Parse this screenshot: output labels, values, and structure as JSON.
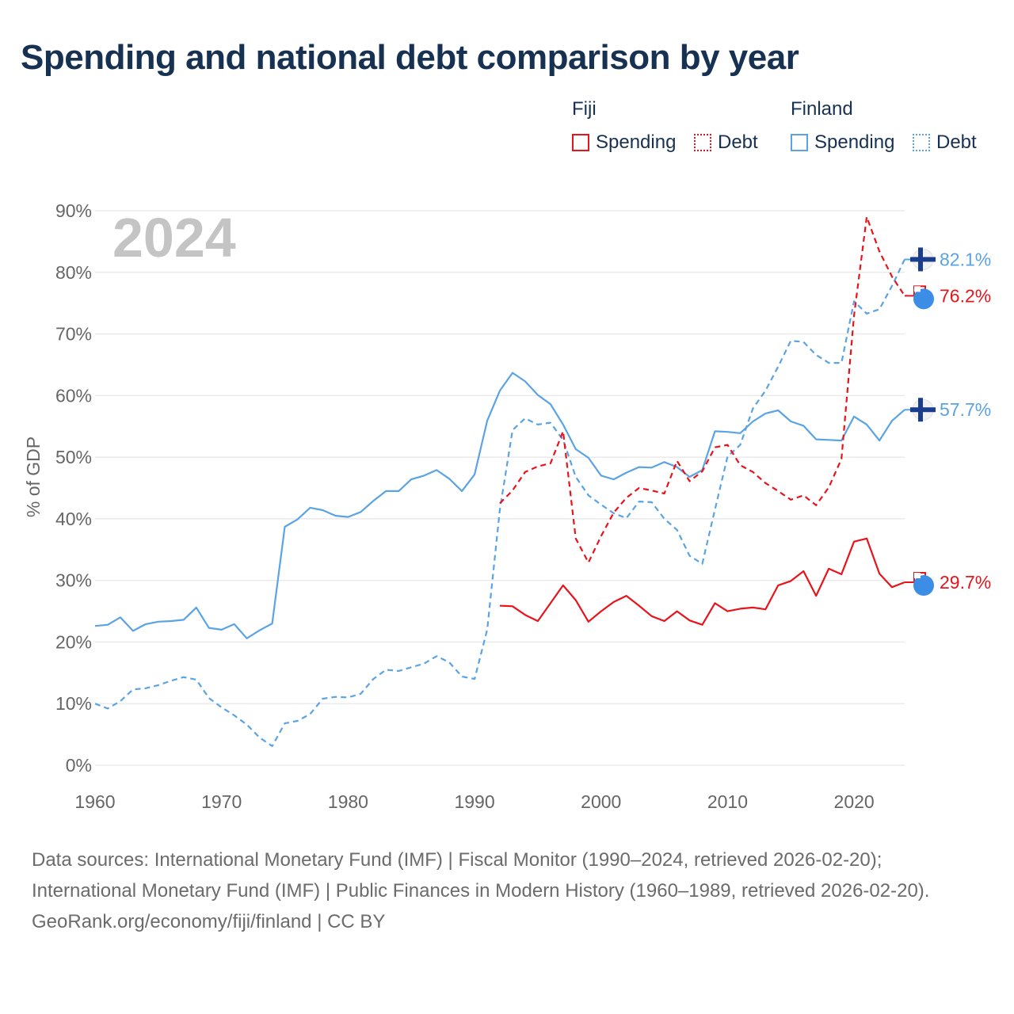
{
  "title": "Spending and national debt comparison by year",
  "legend": {
    "groups": [
      {
        "name": "Fiji",
        "items": [
          "Spending",
          "Debt"
        ]
      },
      {
        "name": "Finland",
        "items": [
          "Spending",
          "Debt"
        ]
      }
    ]
  },
  "year_watermark": "2024",
  "footer": {
    "sources": "Data sources: International Monetary Fund (IMF) | Fiscal Monitor (1990–2024, retrieved 2026-02-20); International Monetary Fund (IMF) | Public Finances in Modern History (1960–1989, retrieved 2026-02-20).",
    "credit": "GeoRank.org/economy/fiji/finland | CC BY"
  },
  "colors": {
    "fiji": "#e8141c",
    "finland": "#5aa3e4",
    "grid": "#e6e6e6",
    "axis_text": "#666666"
  },
  "chart_data": {
    "type": "line",
    "ylabel": "% of GDP",
    "xlabel": "",
    "xlim": [
      1960,
      2024
    ],
    "ylim": [
      0,
      90
    ],
    "x_ticks": [
      1960,
      1970,
      1980,
      1990,
      2000,
      2010,
      2020
    ],
    "x_tick_labels": [
      "1960",
      "1970",
      "1980",
      "1990",
      "2000",
      "2010",
      "2020"
    ],
    "y_ticks": [
      0,
      10,
      20,
      30,
      40,
      50,
      60,
      70,
      80,
      90
    ],
    "y_tick_labels": [
      "0%",
      "10%",
      "20%",
      "30%",
      "40%",
      "50%",
      "60%",
      "70%",
      "80%",
      "90%"
    ],
    "series": [
      {
        "name": "Finland Spending",
        "country": "Finland",
        "style": "solid",
        "start": 1960,
        "end_label": "57.7%",
        "values": [
          22.6,
          22.8,
          24.0,
          21.8,
          22.9,
          23.3,
          23.4,
          23.6,
          25.6,
          22.3,
          22.0,
          22.9,
          20.6,
          21.9,
          23.0,
          38.7,
          39.9,
          41.8,
          41.4,
          40.5,
          40.3,
          41.1,
          42.9,
          44.5,
          44.5,
          46.4,
          47.0,
          47.9,
          46.5,
          44.5,
          47.2,
          55.9,
          60.8,
          63.7,
          62.3,
          60.1,
          58.6,
          55.3,
          51.3,
          49.9,
          47.0,
          46.4,
          47.5,
          48.4,
          48.3,
          49.2,
          48.4,
          46.8,
          47.9,
          54.2,
          54.1,
          53.9,
          55.8,
          57.1,
          57.6,
          55.8,
          55.1,
          52.9,
          52.8,
          52.7,
          56.6,
          55.3,
          52.7,
          55.9,
          57.7
        ]
      },
      {
        "name": "Finland Debt",
        "country": "Finland",
        "style": "dashed",
        "start": 1960,
        "end_label": "82.1%",
        "values": [
          10.0,
          9.2,
          10.4,
          12.3,
          12.5,
          13.0,
          13.7,
          14.3,
          13.9,
          10.9,
          9.4,
          8.1,
          6.6,
          4.5,
          3.1,
          6.8,
          7.2,
          8.3,
          10.8,
          11.1,
          11.0,
          11.6,
          14.0,
          15.5,
          15.3,
          15.9,
          16.5,
          17.7,
          16.7,
          14.4,
          14.0,
          22.0,
          41.5,
          54.4,
          56.3,
          55.3,
          55.6,
          52.8,
          46.8,
          43.8,
          42.3,
          40.9,
          40.1,
          42.8,
          42.7,
          40.0,
          38.2,
          34.0,
          32.7,
          41.5,
          50.1,
          52.0,
          57.9,
          60.8,
          64.7,
          68.9,
          68.7,
          66.6,
          65.3,
          65.3,
          75.3,
          73.3,
          74.0,
          77.8,
          82.1
        ]
      },
      {
        "name": "Fiji Spending",
        "country": "Fiji",
        "style": "solid",
        "start": 1992,
        "end_label": "29.7%",
        "values": [
          25.9,
          25.8,
          24.4,
          23.4,
          26.3,
          29.2,
          26.8,
          23.3,
          25.0,
          26.5,
          27.5,
          25.9,
          24.2,
          23.4,
          25.0,
          23.5,
          22.8,
          26.3,
          25.0,
          25.4,
          25.6,
          25.3,
          29.2,
          29.9,
          31.5,
          27.5,
          31.9,
          31.0,
          36.3,
          36.8,
          31.1,
          28.9,
          29.7
        ]
      },
      {
        "name": "Fiji Debt",
        "country": "Fiji",
        "style": "dashed",
        "start": 1992,
        "end_label": "76.2%",
        "values": [
          42.5,
          44.6,
          47.6,
          48.5,
          49.0,
          54.2,
          36.8,
          32.9,
          37.2,
          41.0,
          43.4,
          45.0,
          44.6,
          44.1,
          49.4,
          46.1,
          47.7,
          51.6,
          52.0,
          48.7,
          47.6,
          45.8,
          44.5,
          43.1,
          43.8,
          42.2,
          45.1,
          49.7,
          73.0,
          89.0,
          83.4,
          79.3,
          76.2
        ]
      }
    ]
  }
}
